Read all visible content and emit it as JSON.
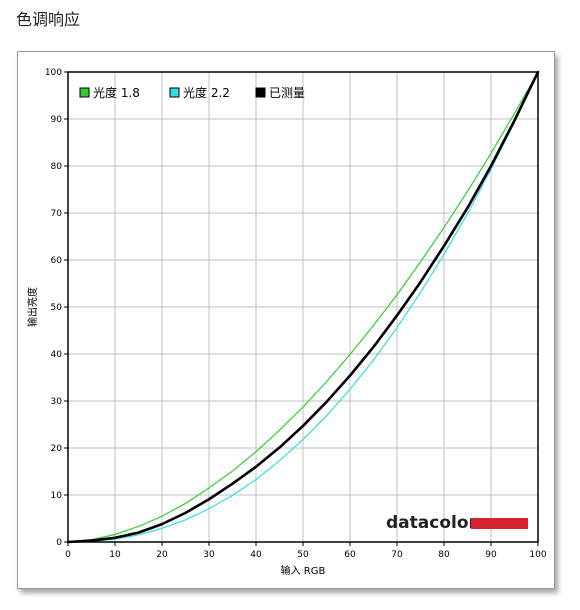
{
  "page": {
    "title": "色调响应"
  },
  "chart_data": {
    "type": "line",
    "xlabel": "输入 RGB",
    "ylabel": "输出亮度",
    "xlim": [
      0,
      100
    ],
    "ylim": [
      0,
      100
    ],
    "xticks": [
      0,
      10,
      20,
      30,
      40,
      50,
      60,
      70,
      80,
      90,
      100
    ],
    "yticks": [
      0,
      10,
      20,
      30,
      40,
      50,
      60,
      70,
      80,
      90,
      100
    ],
    "grid": true,
    "legend_position": "top-left",
    "series": [
      {
        "name": "光度 1.8",
        "color": "#33cc33",
        "gamma": 1.8,
        "x": [
          0,
          5,
          10,
          15,
          20,
          25,
          30,
          35,
          40,
          45,
          50,
          55,
          60,
          65,
          70,
          75,
          80,
          85,
          90,
          95,
          100
        ],
        "y": [
          0,
          0.5,
          1.6,
          3.3,
          5.5,
          8.2,
          11.5,
          15.1,
          19.2,
          23.8,
          28.7,
          34.1,
          39.9,
          46.1,
          52.6,
          59.6,
          66.9,
          74.6,
          82.7,
          91.2,
          100
        ]
      },
      {
        "name": "光度 2.2",
        "color": "#33dddd",
        "gamma": 2.2,
        "x": [
          0,
          5,
          10,
          15,
          20,
          25,
          30,
          35,
          40,
          45,
          50,
          55,
          60,
          65,
          70,
          75,
          80,
          85,
          90,
          95,
          100
        ],
        "y": [
          0,
          0.1,
          0.6,
          1.5,
          2.9,
          4.7,
          7.1,
          9.9,
          13.3,
          17.3,
          21.8,
          26.8,
          32.5,
          38.7,
          45.6,
          53.1,
          61.2,
          69.9,
          79.3,
          89.3,
          100
        ]
      },
      {
        "name": "已测量",
        "color": "#000000",
        "x": [
          0,
          5,
          10,
          15,
          20,
          25,
          30,
          35,
          40,
          45,
          50,
          55,
          60,
          65,
          70,
          75,
          80,
          85,
          90,
          95,
          100
        ],
        "y": [
          0,
          0.3,
          0.9,
          2.0,
          3.8,
          6.2,
          9.1,
          12.4,
          16.0,
          20.1,
          24.7,
          29.8,
          35.4,
          41.5,
          48.2,
          55.3,
          63.0,
          71.1,
          80.0,
          89.7,
          100
        ]
      }
    ]
  },
  "branding": {
    "logo_text": "datacolor",
    "logo_accent": "#d9232e"
  }
}
